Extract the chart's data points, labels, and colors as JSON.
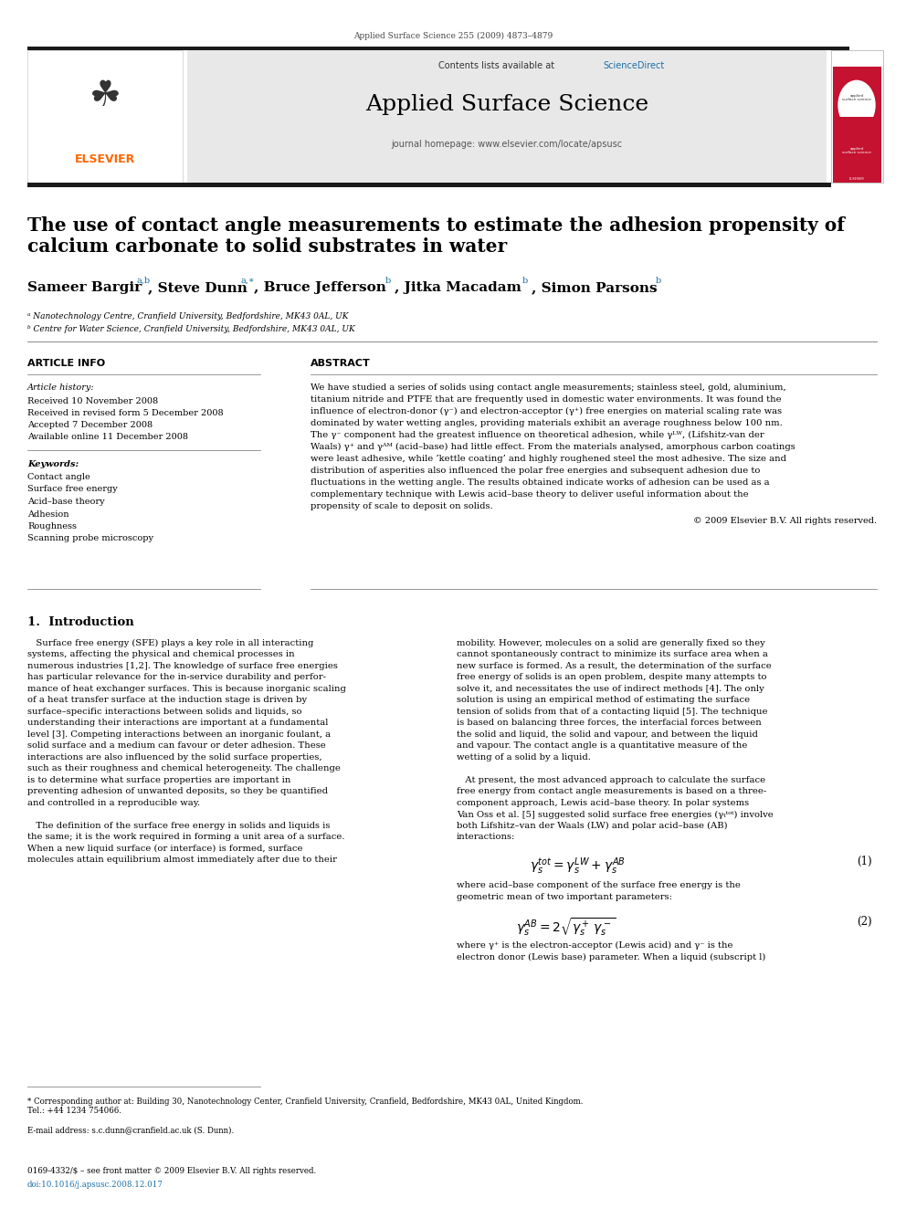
{
  "page_width": 9.92,
  "page_height": 13.23,
  "background_color": "#ffffff",
  "header_journal_ref": "Applied Surface Science 255 (2009) 4873–4879",
  "journal_name": "Applied Surface Science",
  "sciencedirect_color": "#1a6fa8",
  "journal_homepage": "journal homepage: www.elsevier.com/locate/apsusc",
  "article_title": "The use of contact angle measurements to estimate the adhesion propensity of\ncalcium carbonate to solid substrates in water",
  "affil1": "ᵃ Nanotechnology Centre, Cranfield University, Bedfordshire, MK43 0AL, UK",
  "affil2": "ᵇ Centre for Water Science, Cranfield University, Bedfordshire, MK43 0AL, UK",
  "section_left_header": "ARTICLE INFO",
  "section_right_header": "ABSTRACT",
  "article_history_label": "Article history:",
  "received": "Received 10 November 2008",
  "received_revised": "Received in revised form 5 December 2008",
  "accepted": "Accepted 7 December 2008",
  "available": "Available online 11 December 2008",
  "keywords_label": "Keywords:",
  "keywords": [
    "Contact angle",
    "Surface free energy",
    "Acid–base theory",
    "Adhesion",
    "Roughness",
    "Scanning probe microscopy"
  ],
  "copyright_text": "© 2009 Elsevier B.V. All rights reserved.",
  "intro_section": "1.  Introduction",
  "eq1_number": "(1)",
  "eq2_number": "(2)",
  "footnote_star": "* Corresponding author at: Building 30, Nanotechnology Center, Cranfield University, Cranfield, Bedfordshire, MK43 0AL, United Kingdom.\nTel.: +44 1234 754066.",
  "footnote_email": "E-mail address: s.c.dunn@cranfield.ac.uk (S. Dunn).",
  "footer_issn": "0169-4332/$ – see front matter © 2009 Elsevier B.V. All rights reserved.",
  "footer_doi": "doi:10.1016/j.apsusc.2008.12.017",
  "text_color": "#000000",
  "link_color": "#1a6fa8"
}
